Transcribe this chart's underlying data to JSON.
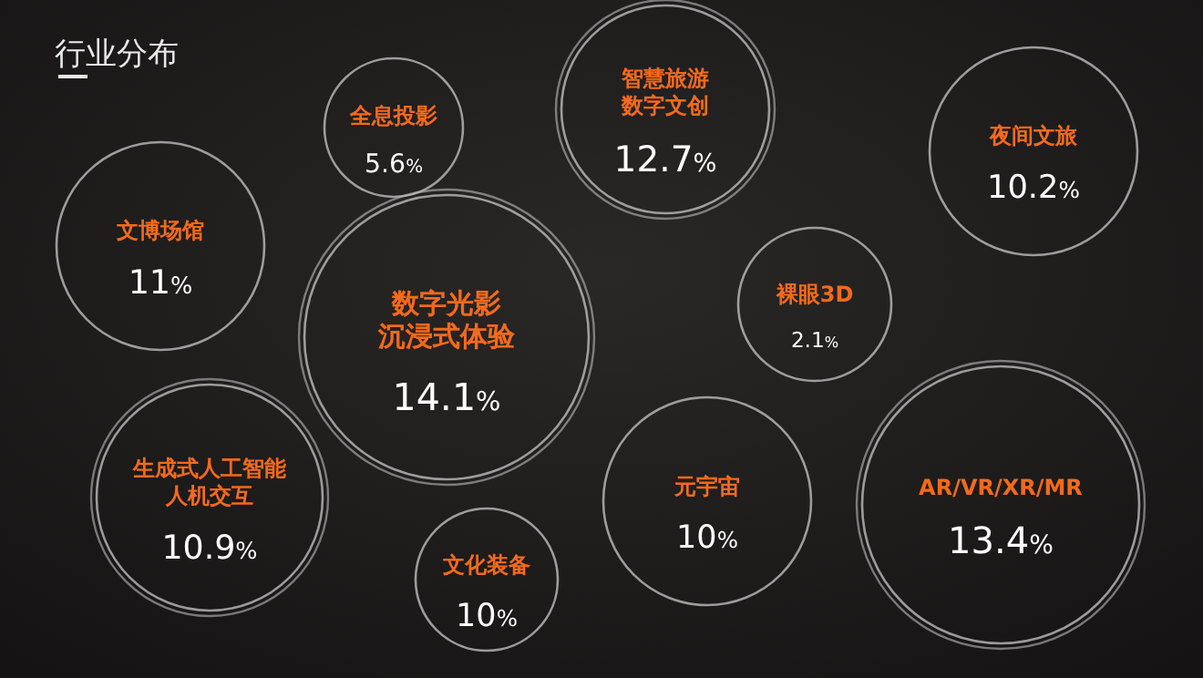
{
  "chart_data": {
    "type": "other",
    "title": "行业分布",
    "categories": [
      "全息投影",
      "智慧旅游数字文创",
      "夜间文旅",
      "文博场馆",
      "数字光影沉浸式体验",
      "裸眼3D",
      "生成式人工智能人机交互",
      "元宇宙",
      "AR/VR/XR/MR",
      "文化装备"
    ],
    "values": [
      5.6,
      12.7,
      10.2,
      11,
      14.1,
      2.1,
      10.9,
      10,
      13.4,
      10
    ],
    "value_labels": [
      "5.6%",
      "12.7%",
      "10.2%",
      "11%",
      "14.1%",
      "2.1%",
      "10.9%",
      "10%",
      "13.4%",
      "10%"
    ],
    "color": "#f26a1b"
  }
}
